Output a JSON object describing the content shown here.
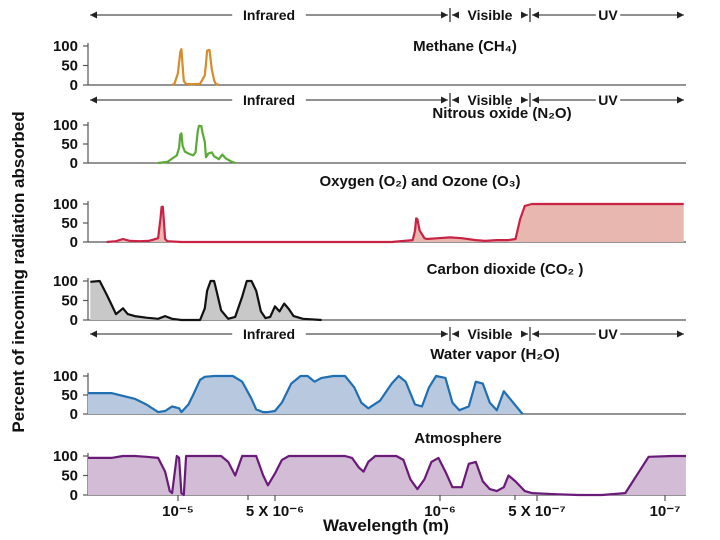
{
  "chart_data": {
    "type": "area",
    "ylabel": "Percent of incoming radiation absorbed",
    "xlabel": "Wavelength (m)",
    "x_ticks": [
      "10⁻⁵",
      "5 X 10⁻⁶",
      "10⁻⁶",
      "5 X 10⁻⁷",
      "10⁻⁷"
    ],
    "ylim": [
      0,
      100
    ],
    "y_ticks": [
      "0",
      "50",
      "100"
    ],
    "bands": [
      "Infrared",
      "Visible",
      "UV"
    ],
    "panels": [
      {
        "title": "Methane (CH₄)",
        "color": "#d98a2b",
        "fill": false,
        "band_strip": true,
        "x": [
          3.6,
          3.7,
          3.85,
          3.95,
          4.0,
          4.05,
          4.1,
          4.2,
          4.4,
          4.8,
          5.0,
          5.05,
          5.1,
          5.2,
          5.3,
          5.4,
          5.45,
          5.5,
          5.6
        ],
        "y": [
          0,
          3,
          30,
          85,
          92,
          50,
          10,
          3,
          2,
          3,
          25,
          55,
          88,
          90,
          40,
          12,
          5,
          2,
          0
        ]
      },
      {
        "title": "Nitrous oxide (N₂O)",
        "color": "#5aaa35",
        "fill": false,
        "band_strip": true,
        "x": [
          3.0,
          3.4,
          3.8,
          3.9,
          3.95,
          4.0,
          4.05,
          4.15,
          4.3,
          4.5,
          4.6,
          4.7,
          4.75,
          4.85,
          4.9,
          5.0,
          5.05,
          5.15,
          5.3,
          5.4,
          5.6,
          5.75,
          5.9,
          6.1,
          6.3
        ],
        "y": [
          0,
          3,
          20,
          40,
          75,
          78,
          45,
          30,
          25,
          20,
          28,
          85,
          98,
          97,
          80,
          55,
          15,
          25,
          28,
          18,
          10,
          22,
          12,
          5,
          0
        ]
      },
      {
        "title": "Oxygen (O₂) and Ozone (O₃)",
        "color": "#c82245",
        "fill": true,
        "fill_color": "#e8b8b0",
        "band_strip": false,
        "x": [
          0.8,
          1.2,
          1.5,
          1.8,
          2.2,
          2.6,
          3.0,
          3.1,
          3.15,
          3.2,
          3.25,
          3.3,
          3.4,
          4.0,
          6.0,
          10.0,
          13.0,
          13.9,
          14.0,
          14.05,
          14.1,
          14.2,
          14.4,
          14.5,
          15.0,
          15.5,
          16.0,
          16.6,
          17.0,
          17.5,
          18.0,
          18.3,
          18.5,
          18.7,
          19.0,
          23.0,
          25.5
        ],
        "y": [
          0,
          2,
          8,
          3,
          2,
          3,
          10,
          60,
          92,
          93,
          55,
          8,
          2,
          0,
          0,
          0,
          0,
          5,
          30,
          62,
          60,
          30,
          10,
          8,
          10,
          12,
          10,
          5,
          3,
          5,
          5,
          8,
          60,
          95,
          100,
          100,
          100
        ]
      },
      {
        "title": "Carbon dioxide (CO₂ )",
        "color": "#111111",
        "fill": true,
        "fill_color": "#c8c8c8",
        "band_strip": false,
        "x": [
          0.1,
          0.5,
          0.8,
          1.0,
          1.2,
          1.5,
          1.7,
          2.0,
          2.5,
          3.0,
          3.3,
          3.6,
          4.0,
          4.2,
          4.4,
          4.6,
          4.8,
          5.0,
          5.1,
          5.25,
          5.4,
          5.5,
          5.7,
          6.0,
          6.3,
          6.6,
          6.8,
          7.0,
          7.2,
          7.4,
          7.6,
          7.8,
          8.0,
          8.2,
          8.4,
          8.6,
          8.8,
          9.2,
          10.0
        ],
        "y": [
          98,
          100,
          65,
          40,
          15,
          30,
          15,
          10,
          6,
          3,
          10,
          3,
          0,
          0,
          0,
          0,
          0,
          30,
          75,
          100,
          100,
          75,
          25,
          3,
          8,
          60,
          100,
          100,
          75,
          22,
          5,
          8,
          35,
          22,
          42,
          28,
          10,
          3,
          0
        ]
      },
      {
        "title": "Water vapor (H₂O)",
        "color": "#1f6fb2",
        "fill": true,
        "fill_color": "#b8c8de",
        "band_strip": true,
        "x": [
          0.0,
          1.0,
          2.0,
          2.5,
          3.0,
          3.3,
          3.6,
          3.9,
          4.0,
          4.3,
          4.5,
          4.8,
          5.0,
          5.4,
          5.8,
          6.2,
          6.6,
          7.0,
          7.2,
          7.5,
          7.7,
          8.0,
          8.3,
          8.7,
          9.1,
          9.4,
          9.7,
          10.0,
          10.5,
          11.0,
          11.4,
          11.7,
          12.0,
          12.5,
          13.0,
          13.3,
          13.6,
          14.0,
          14.3,
          14.6,
          14.9,
          15.3,
          15.6,
          15.9,
          16.3,
          16.6,
          16.9,
          17.2,
          17.5,
          17.8,
          18.0,
          18.6
        ],
        "y": [
          55,
          55,
          40,
          25,
          5,
          8,
          20,
          15,
          5,
          25,
          50,
          90,
          98,
          100,
          100,
          100,
          85,
          40,
          12,
          5,
          5,
          8,
          30,
          80,
          100,
          100,
          85,
          95,
          100,
          100,
          70,
          30,
          15,
          35,
          80,
          100,
          85,
          25,
          20,
          70,
          100,
          95,
          30,
          10,
          20,
          85,
          80,
          30,
          10,
          60,
          45,
          0
        ]
      },
      {
        "title": "Atmosphere",
        "color": "#6a1a78",
        "fill": true,
        "fill_color": "#d2bcd6",
        "band_strip": false,
        "x": [
          0.0,
          1.0,
          1.5,
          2.0,
          2.5,
          3.0,
          3.3,
          3.5,
          3.6,
          3.8,
          3.9,
          4.0,
          4.1,
          4.2,
          4.5,
          4.8,
          5.0,
          5.3,
          5.7,
          6.0,
          6.3,
          6.6,
          6.9,
          7.2,
          7.5,
          7.7,
          8.0,
          8.3,
          8.6,
          8.9,
          9.2,
          9.5,
          10.0,
          10.5,
          11.0,
          11.3,
          11.6,
          11.8,
          12.0,
          12.3,
          12.6,
          12.9,
          13.2,
          13.5,
          13.8,
          14.1,
          14.4,
          14.7,
          15.0,
          15.3,
          15.6,
          16.0,
          16.3,
          16.6,
          16.9,
          17.2,
          17.5,
          17.8,
          18.0,
          18.3,
          18.7,
          19.0,
          20.0,
          21.0,
          22.0,
          23.0,
          24.0,
          25.0,
          25.6
        ],
        "y": [
          95,
          95,
          100,
          100,
          98,
          95,
          60,
          10,
          5,
          100,
          95,
          5,
          0,
          100,
          100,
          100,
          100,
          100,
          100,
          85,
          50,
          100,
          100,
          100,
          50,
          25,
          55,
          90,
          100,
          100,
          100,
          100,
          100,
          100,
          100,
          95,
          70,
          60,
          85,
          100,
          100,
          100,
          100,
          90,
          40,
          15,
          40,
          85,
          95,
          60,
          20,
          20,
          80,
          85,
          35,
          15,
          10,
          20,
          50,
          35,
          10,
          5,
          2,
          0,
          0,
          5,
          98,
          100,
          100
        ]
      }
    ]
  }
}
